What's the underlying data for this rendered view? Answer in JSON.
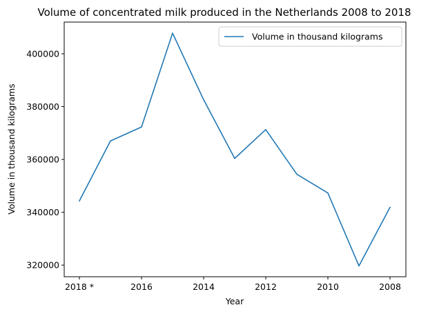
{
  "chart_data": {
    "type": "line",
    "title": "Volume of concentrated milk produced in the Netherlands 2008 to 2018",
    "xlabel": "Year",
    "ylabel": "Volume in thousand kilograms",
    "categories": [
      "2018 *",
      "2017",
      "2016",
      "2015",
      "2014",
      "2013",
      "2012",
      "2011",
      "2010",
      "2009",
      "2008"
    ],
    "x_tick_labels": [
      "2018 *",
      "2016",
      "2014",
      "2012",
      "2010",
      "2008"
    ],
    "y_tick_labels": [
      "320000",
      "340000",
      "360000",
      "380000",
      "400000"
    ],
    "y_ticks": [
      320000,
      340000,
      360000,
      380000,
      400000
    ],
    "ylim": [
      315600,
      412000
    ],
    "series": [
      {
        "name": "Volume in thousand kilograms",
        "color": "#1f77b4",
        "values": [
          344300,
          367000,
          372300,
          407800,
          382600,
          360400,
          371300,
          354400,
          347300,
          319700,
          341900
        ]
      }
    ],
    "legend": {
      "placement": "top-right"
    },
    "grid": false
  }
}
